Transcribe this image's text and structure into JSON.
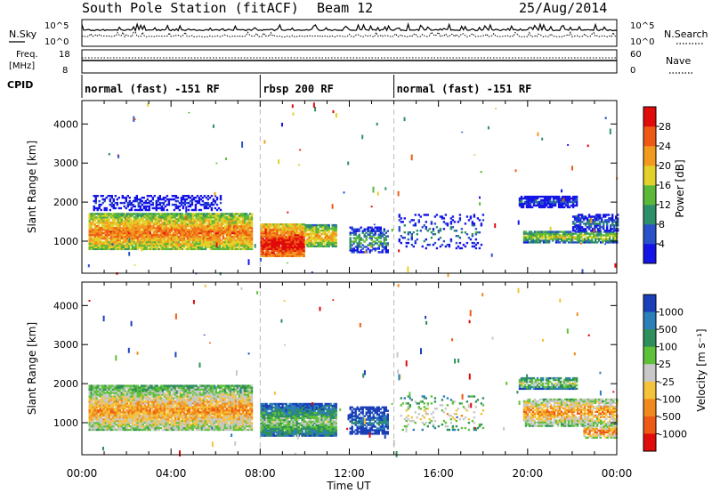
{
  "header": {
    "station": "South Pole Station (fitACF)",
    "beam": "Beam 12",
    "date": "25/Aug/2014"
  },
  "summary": {
    "nsky_label": "N.Sky",
    "nsearch_label": "N.Search",
    "freq_label_1": "Freq.",
    "freq_label_2": "[MHz]",
    "nave_label": "Nave",
    "cpid_label": "CPID",
    "noise_tick_top": "10^5",
    "noise_tick_bottom": "10^0",
    "freq_ticks": [
      "18",
      "8"
    ],
    "nave_ticks": [
      "60",
      "0"
    ]
  },
  "cpid_segments": [
    {
      "label": "normal (fast) -151 RF",
      "start_hour": 0,
      "end_hour": 8
    },
    {
      "label": "rbsp 200 RF",
      "start_hour": 8,
      "end_hour": 14
    },
    {
      "label": "normal (fast) -151 RF",
      "start_hour": 14,
      "end_hour": 24
    }
  ],
  "chart_data": [
    {
      "type": "heatmap",
      "panel": "power",
      "ylabel": "Slant Range [km]",
      "xlim": [
        0,
        24
      ],
      "ylim": [
        180,
        4600
      ],
      "yticks": [
        "1000",
        "2000",
        "3000",
        "4000"
      ],
      "colorbar_label": "Power [dB]",
      "colorbar_ticks": [
        "4",
        "8",
        "12",
        "16",
        "20",
        "24",
        "28"
      ],
      "colorbar_range": [
        0,
        32
      ],
      "colors": [
        "#1414e6",
        "#2a52c8",
        "#2f8f6a",
        "#5cb838",
        "#e3d12b",
        "#f29a20",
        "#ee5a16",
        "#e00b0b"
      ],
      "regions": [
        {
          "t0": 0.3,
          "t1": 7.6,
          "r0": 780,
          "r1": 1700,
          "center": 1200,
          "level": 0.78,
          "density": 0.95
        },
        {
          "t0": 8.0,
          "t1": 10.0,
          "r0": 600,
          "r1": 1450,
          "center": 900,
          "level": 0.97,
          "density": 0.97
        },
        {
          "t0": 10.0,
          "t1": 11.4,
          "r0": 850,
          "r1": 1400,
          "center": 1100,
          "level": 0.7,
          "density": 0.85
        },
        {
          "t0": 0.5,
          "t1": 6.2,
          "r0": 1780,
          "r1": 2150,
          "center": 1950,
          "level": 0.15,
          "density": 0.45
        },
        {
          "t0": 12.0,
          "t1": 13.7,
          "r0": 700,
          "r1": 1350,
          "center": 1000,
          "level": 0.4,
          "density": 0.6
        },
        {
          "t0": 19.6,
          "t1": 22.2,
          "r0": 1850,
          "r1": 2150,
          "center": 2000,
          "level": 0.2,
          "density": 0.8
        },
        {
          "t0": 19.8,
          "t1": 24.0,
          "r0": 950,
          "r1": 1250,
          "center": 1100,
          "level": 0.55,
          "density": 0.85
        },
        {
          "t0": 22.0,
          "t1": 24.0,
          "r0": 1250,
          "r1": 1700,
          "center": 1450,
          "level": 0.3,
          "density": 0.7
        },
        {
          "t0": 14.2,
          "t1": 18.0,
          "r0": 800,
          "r1": 1700,
          "center": 1200,
          "level": 0.3,
          "density": 0.18
        }
      ]
    },
    {
      "type": "heatmap",
      "panel": "velocity",
      "ylabel": "Slant Range [km]",
      "xlim": [
        0,
        24
      ],
      "ylim": [
        180,
        4600
      ],
      "yticks": [
        "1000",
        "2000",
        "3000",
        "4000"
      ],
      "xlabel": "Time UT",
      "xticks": [
        "00:00",
        "04:00",
        "08:00",
        "12:00",
        "16:00",
        "20:00",
        "00:00"
      ],
      "colorbar_label": "Velocity [m s⁻¹]",
      "colorbar_ticks": [
        "1000",
        "500",
        "100",
        "25",
        "-25",
        "-100",
        "-500",
        "-1000"
      ],
      "colors": [
        "#1a3fb8",
        "#2c7fb8",
        "#2f8f5a",
        "#5fc13a",
        "#c8c8c8",
        "#f5c33b",
        "#f08a1c",
        "#ee5a16",
        "#e00b0b"
      ],
      "regions": [
        {
          "t0": 0.3,
          "t1": 7.6,
          "r0": 800,
          "r1": 1950,
          "center": 1300,
          "level": 0.72,
          "density": 0.95
        },
        {
          "t0": 8.0,
          "t1": 11.4,
          "r0": 650,
          "r1": 1500,
          "center": 1000,
          "level": 0.45,
          "density": 0.95
        },
        {
          "t0": 12.0,
          "t1": 13.7,
          "r0": 700,
          "r1": 1400,
          "center": 1000,
          "level": 0.2,
          "density": 0.7
        },
        {
          "t0": 19.6,
          "t1": 22.2,
          "r0": 1850,
          "r1": 2150,
          "center": 2000,
          "level": 0.5,
          "density": 0.8
        },
        {
          "t0": 19.8,
          "t1": 24.0,
          "r0": 900,
          "r1": 1600,
          "center": 1250,
          "level": 0.73,
          "density": 0.8
        },
        {
          "t0": 22.5,
          "t1": 24.0,
          "r0": 600,
          "r1": 900,
          "center": 750,
          "level": 0.8,
          "density": 0.8
        },
        {
          "t0": 14.2,
          "t1": 18.0,
          "r0": 800,
          "r1": 1700,
          "center": 1200,
          "level": 0.6,
          "density": 0.15
        }
      ]
    }
  ]
}
